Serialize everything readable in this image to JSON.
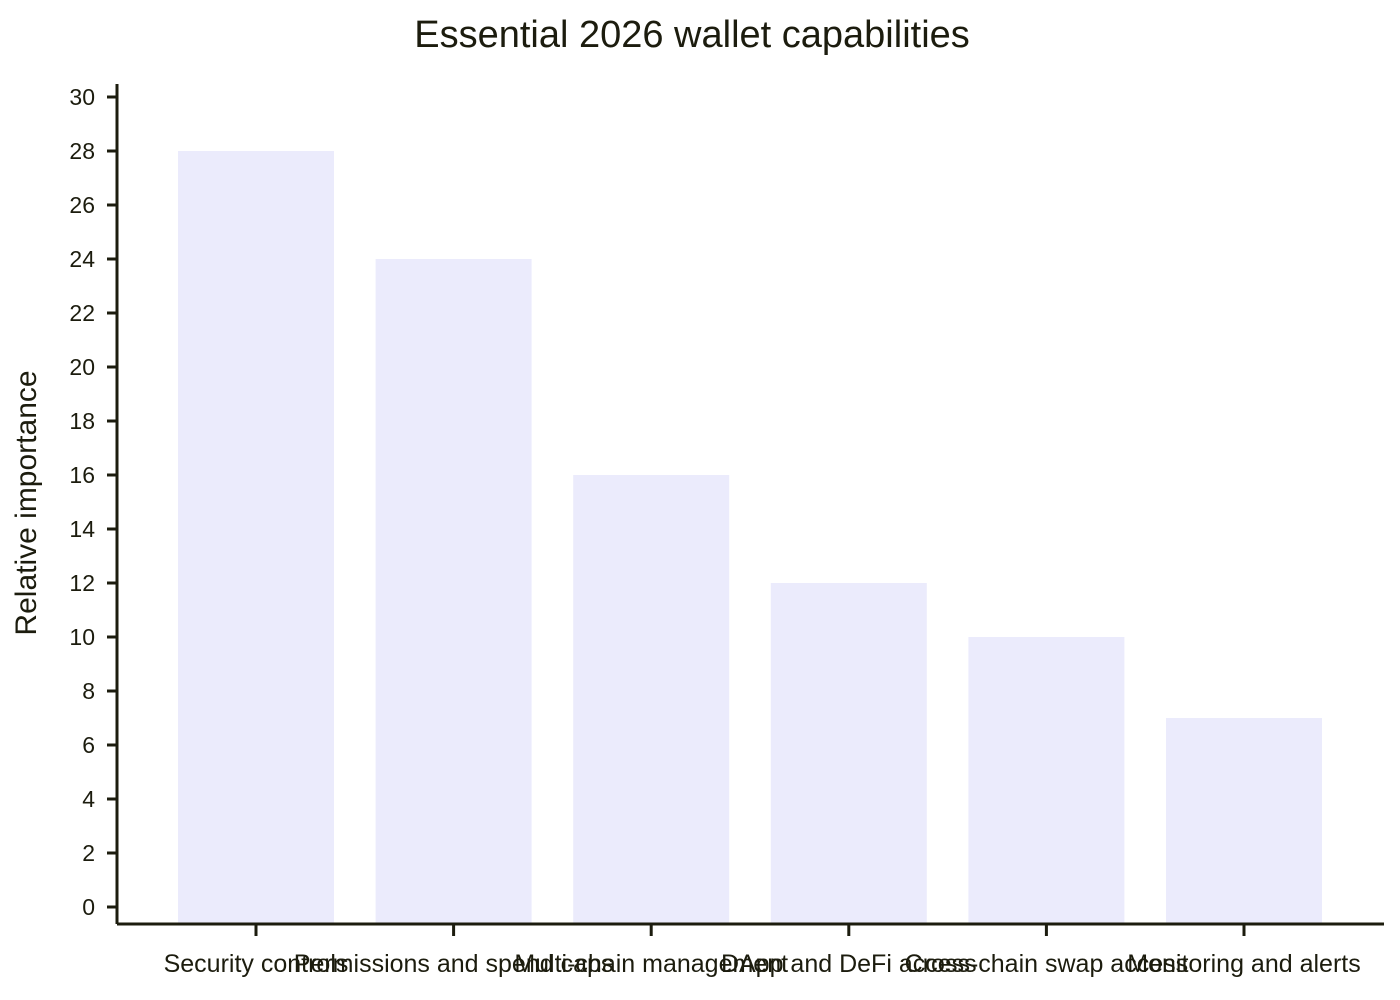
{
  "chart_data": {
    "type": "bar",
    "title": "Essential 2026 wallet capabilities",
    "xlabel": "",
    "ylabel": "Relative importance",
    "categories": [
      "Security controls",
      "Permissions and spend caps",
      "Multi-chain management",
      "DApp and DeFi access",
      "Cross-chain swap access",
      "Monitoring and alerts"
    ],
    "values": [
      28,
      24,
      16,
      12,
      10,
      7
    ],
    "ylim": [
      0,
      30
    ],
    "yticks": [
      0,
      2,
      4,
      6,
      8,
      10,
      12,
      14,
      16,
      18,
      20,
      22,
      24,
      26,
      28,
      30
    ],
    "grid": false,
    "bar_color": "#ebebfc",
    "axis_color": "#1c1c0e"
  }
}
